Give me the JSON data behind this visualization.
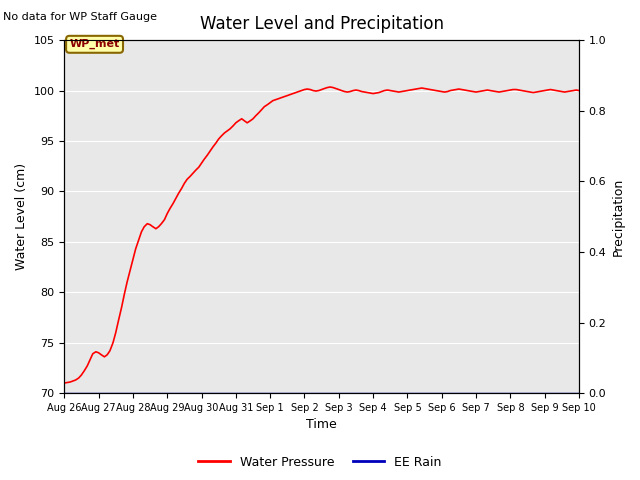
{
  "title": "Water Level and Precipitation",
  "top_left_text": "No data for WP Staff Gauge",
  "annotation_text": "WP_met",
  "ylabel_left": "Water Level (cm)",
  "ylabel_right": "Precipitation",
  "xlabel": "Time",
  "ylim_left": [
    70,
    105
  ],
  "ylim_right": [
    0.0,
    1.0
  ],
  "yticks_left": [
    70,
    75,
    80,
    85,
    90,
    95,
    100,
    105
  ],
  "yticks_right": [
    0.0,
    0.2,
    0.4,
    0.6,
    0.8,
    1.0
  ],
  "background_color": "#e8e8e8",
  "line_color_water": "#ff0000",
  "line_color_rain": "#0000bb",
  "legend_water": "Water Pressure",
  "legend_rain": "EE Rain",
  "water_x": [
    0.0,
    0.08,
    0.17,
    0.25,
    0.33,
    0.42,
    0.5,
    0.58,
    0.67,
    0.75,
    0.83,
    0.92,
    1.0,
    1.08,
    1.17,
    1.25,
    1.33,
    1.42,
    1.5,
    1.58,
    1.67,
    1.75,
    1.83,
    1.92,
    2.0,
    2.08,
    2.17,
    2.25,
    2.33,
    2.42,
    2.5,
    2.58,
    2.67,
    2.75,
    2.83,
    2.92,
    3.0,
    3.08,
    3.17,
    3.25,
    3.33,
    3.42,
    3.5,
    3.58,
    3.67,
    3.75,
    3.83,
    3.92,
    4.0,
    4.08,
    4.17,
    4.25,
    4.33,
    4.42,
    4.5,
    4.58,
    4.67,
    4.75,
    4.83,
    4.92,
    5.0,
    5.08,
    5.17,
    5.25,
    5.33,
    5.42,
    5.5,
    5.58,
    5.67,
    5.75,
    5.83,
    5.92,
    6.0,
    6.08,
    6.17,
    6.25,
    6.33,
    6.42,
    6.5,
    6.58,
    6.67,
    6.75,
    6.83,
    6.92,
    7.0,
    7.08,
    7.17,
    7.25,
    7.33,
    7.42,
    7.5,
    7.58,
    7.67,
    7.75,
    7.83,
    7.92,
    8.0,
    8.08,
    8.17,
    8.25,
    8.33,
    8.42,
    8.5,
    8.58,
    8.67,
    8.75,
    8.83,
    8.92,
    9.0,
    9.08,
    9.17,
    9.25,
    9.33,
    9.42,
    9.5,
    9.58,
    9.67,
    9.75,
    9.83,
    9.92,
    10.0,
    10.08,
    10.17,
    10.25,
    10.33,
    10.42,
    10.5,
    10.58,
    10.67,
    10.75,
    10.83,
    10.92,
    11.0,
    11.08,
    11.17,
    11.25,
    11.33,
    11.42,
    11.5,
    11.58,
    11.67,
    11.75,
    11.83,
    11.92,
    12.0,
    12.08,
    12.17,
    12.25,
    12.33,
    12.42,
    12.5,
    12.58,
    12.67,
    12.75,
    12.83,
    12.92,
    13.0,
    13.08,
    13.17,
    13.25,
    13.33,
    13.42,
    13.5,
    13.58,
    13.67,
    13.75,
    13.83,
    13.92,
    14.0,
    14.08,
    14.17,
    14.25,
    14.33,
    14.42,
    14.5,
    14.58,
    14.67,
    14.75,
    14.83,
    14.92,
    15.0
  ],
  "water_y": [
    71.0,
    71.05,
    71.1,
    71.2,
    71.3,
    71.5,
    71.8,
    72.2,
    72.7,
    73.3,
    73.9,
    74.1,
    74.0,
    73.8,
    73.6,
    73.8,
    74.2,
    75.0,
    76.0,
    77.2,
    78.5,
    79.8,
    81.0,
    82.2,
    83.3,
    84.3,
    85.2,
    86.0,
    86.5,
    86.8,
    86.7,
    86.5,
    86.3,
    86.5,
    86.8,
    87.2,
    87.8,
    88.3,
    88.8,
    89.3,
    89.8,
    90.3,
    90.8,
    91.2,
    91.5,
    91.8,
    92.1,
    92.4,
    92.8,
    93.2,
    93.6,
    94.0,
    94.4,
    94.8,
    95.2,
    95.5,
    95.8,
    96.0,
    96.2,
    96.5,
    96.8,
    97.0,
    97.2,
    97.0,
    96.8,
    97.0,
    97.2,
    97.5,
    97.8,
    98.1,
    98.4,
    98.6,
    98.8,
    99.0,
    99.1,
    99.2,
    99.3,
    99.4,
    99.5,
    99.6,
    99.7,
    99.8,
    99.9,
    100.0,
    100.1,
    100.15,
    100.1,
    100.0,
    99.95,
    100.0,
    100.1,
    100.2,
    100.3,
    100.35,
    100.3,
    100.2,
    100.1,
    100.0,
    99.9,
    99.85,
    99.9,
    100.0,
    100.05,
    100.0,
    99.9,
    99.85,
    99.8,
    99.75,
    99.7,
    99.75,
    99.8,
    99.9,
    100.0,
    100.05,
    100.0,
    99.95,
    99.9,
    99.85,
    99.9,
    99.95,
    100.0,
    100.05,
    100.1,
    100.15,
    100.2,
    100.25,
    100.2,
    100.15,
    100.1,
    100.05,
    100.0,
    99.95,
    99.9,
    99.85,
    99.9,
    100.0,
    100.05,
    100.1,
    100.15,
    100.1,
    100.05,
    100.0,
    99.95,
    99.9,
    99.85,
    99.9,
    99.95,
    100.0,
    100.05,
    100.0,
    99.95,
    99.9,
    99.85,
    99.9,
    99.95,
    100.0,
    100.05,
    100.1,
    100.1,
    100.05,
    100.0,
    99.95,
    99.9,
    99.85,
    99.8,
    99.85,
    99.9,
    99.95,
    100.0,
    100.05,
    100.1,
    100.05,
    100.0,
    99.95,
    99.9,
    99.85,
    99.9,
    99.95,
    100.0,
    100.05,
    100.0
  ],
  "x_range": [
    0,
    15
  ],
  "x_tick_positions": [
    0,
    1,
    2,
    3,
    4,
    5,
    6,
    7,
    8,
    9,
    10,
    11,
    12,
    13,
    14,
    15
  ],
  "x_tick_labels": [
    "Aug 26",
    "Aug 27",
    "Aug 28",
    "Aug 29",
    "Aug 30",
    "Aug 31",
    "Sep 1",
    "Sep 2",
    "Sep 3",
    "Sep 4",
    "Sep 5",
    "Sep 6",
    "Sep 7",
    "Sep 8",
    "Sep 9",
    "Sep 10"
  ],
  "fig_width": 6.4,
  "fig_height": 4.8
}
